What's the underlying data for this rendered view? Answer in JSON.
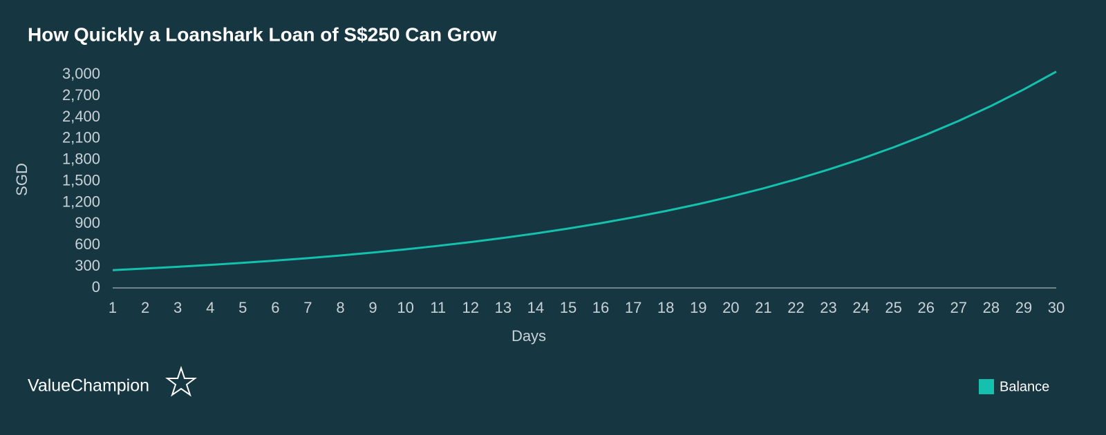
{
  "chart_data": {
    "type": "line",
    "title": "How Quickly a Loanshark Loan of S$250 Can Grow",
    "x_label": "Days",
    "y_label": "SGD",
    "x": [
      1,
      2,
      3,
      4,
      5,
      6,
      7,
      8,
      9,
      10,
      11,
      12,
      13,
      14,
      15,
      16,
      17,
      18,
      19,
      20,
      21,
      22,
      23,
      24,
      25,
      26,
      27,
      28,
      29,
      30
    ],
    "xlim": [
      1,
      30
    ],
    "xticks": [
      1,
      2,
      3,
      4,
      5,
      6,
      7,
      8,
      9,
      10,
      11,
      12,
      13,
      14,
      15,
      16,
      17,
      18,
      19,
      20,
      21,
      22,
      23,
      24,
      25,
      26,
      27,
      28,
      29,
      30
    ],
    "series": [
      {
        "name": "Balance",
        "color": "#14c1ad",
        "values": [
          250,
          273,
          297,
          324,
          353,
          385,
          419,
          457,
          498,
          543,
          592,
          645,
          703,
          766,
          835,
          911,
          993,
          1082,
          1179,
          1285,
          1401,
          1527,
          1665,
          1815,
          1978,
          2156,
          2350,
          2561,
          2792,
          3043
        ]
      }
    ],
    "ylim": [
      0,
      3060
    ],
    "yticks": [
      0,
      300,
      600,
      900,
      {
        "value": 1200,
        "label": "1,200"
      },
      {
        "value": 1500,
        "label": "1,500"
      },
      {
        "value": 1800,
        "label": "1,800"
      },
      {
        "value": 2100,
        "label": "2,100"
      },
      {
        "value": 2400,
        "label": "2,400"
      },
      {
        "value": 2700,
        "label": "2,700"
      },
      {
        "value": 3000,
        "label": "3,000"
      }
    ],
    "grid": false,
    "legend": "bottom-right",
    "brand": "ValueChampion"
  }
}
